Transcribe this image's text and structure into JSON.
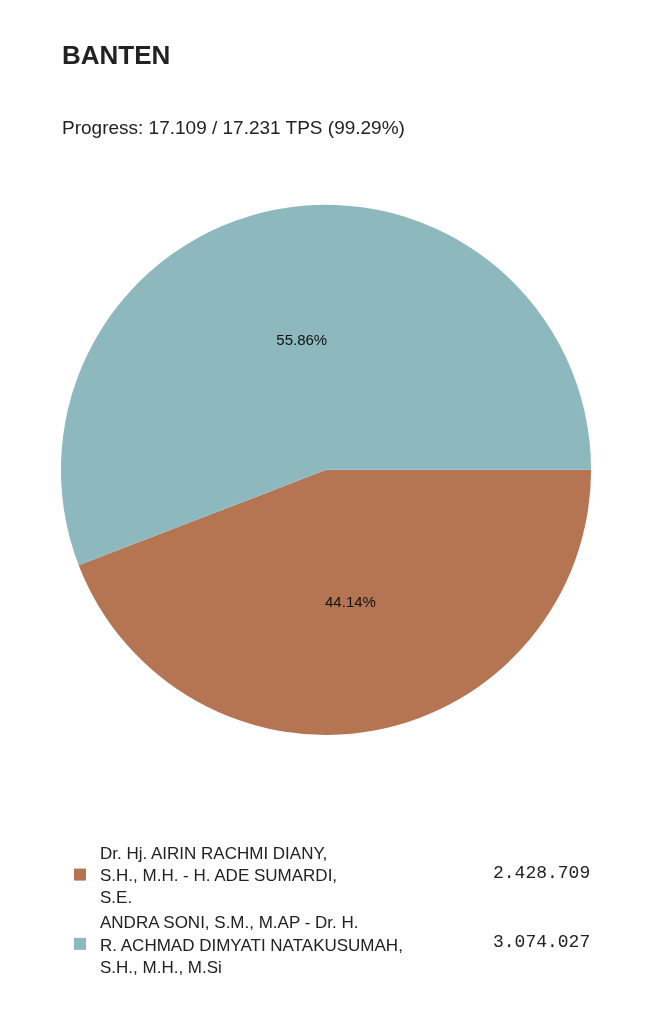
{
  "chart_data": {
    "type": "pie",
    "title": "BANTEN",
    "subtitle": "Progress: 17.109 / 17.231 TPS (99.29%)",
    "categories": [
      "Dr. Hj. AIRIN RACHMI DIANY, S.H., M.H. - H. ADE SUMARDI, S.E.",
      "ANDRA SONI, S.M., M.AP - Dr. H. R. ACHMAD DIMYATI NATAKUSUMAH, S.H., M.H., M.Si"
    ],
    "values": [
      44.14,
      55.86
    ],
    "annotations": [
      "2.428.709",
      "3.074.027"
    ],
    "value_labels": [
      "44.14%",
      "55.86%"
    ],
    "colors": [
      "#b57552",
      "#8db8bd"
    ],
    "legend": "bottom"
  }
}
